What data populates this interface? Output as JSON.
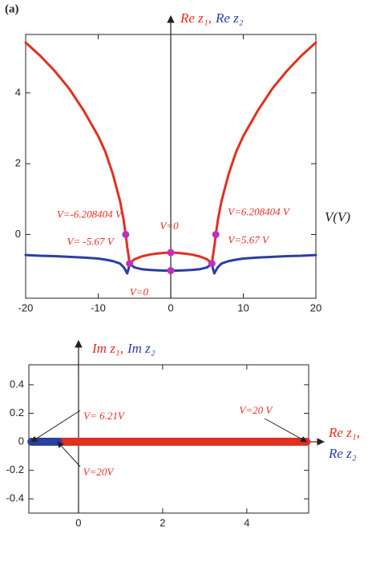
{
  "panel_label": "(a)",
  "chart_data": [
    {
      "type": "line",
      "ylabel": [
        "Re z₁,",
        "Re z₂"
      ],
      "xlabel": "V(V)",
      "x": [
        -20,
        -18,
        -16,
        -14,
        -12,
        -10,
        -9,
        -8,
        -7,
        -6.5,
        -6.208404,
        -6,
        -5.8,
        -5.67,
        -5,
        -4,
        -3,
        -2,
        -1,
        0,
        1,
        2,
        3,
        4,
        5,
        5.67,
        5.8,
        6,
        6.208404,
        6.5,
        7,
        8,
        9,
        10,
        12,
        14,
        16,
        18,
        20
      ],
      "series": [
        {
          "name": "Re z₁",
          "color": "#e03020",
          "values": [
            5.42,
            5.05,
            4.62,
            4.12,
            3.5,
            2.78,
            2.33,
            1.72,
            0.95,
            0.42,
            0,
            -0.35,
            -0.62,
            -0.82,
            -0.7,
            -0.62,
            -0.57,
            -0.54,
            -0.52,
            -0.51,
            -0.52,
            -0.54,
            -0.57,
            -0.62,
            -0.7,
            -0.82,
            -0.62,
            -0.35,
            0,
            0.42,
            0.95,
            1.72,
            2.33,
            2.78,
            3.5,
            4.12,
            4.62,
            5.05,
            5.42
          ]
        },
        {
          "name": "Re z₂",
          "color": "#2a3fa0",
          "values": [
            -0.58,
            -0.6,
            -0.61,
            -0.63,
            -0.65,
            -0.68,
            -0.71,
            -0.75,
            -0.82,
            -0.92,
            -1.02,
            -1.1,
            -0.95,
            -0.82,
            -0.93,
            -0.98,
            -1.0,
            -1.01,
            -1.02,
            -1.02,
            -1.02,
            -1.01,
            -1.0,
            -0.98,
            -0.93,
            -0.82,
            -0.95,
            -1.1,
            -1.02,
            -0.92,
            -0.82,
            -0.75,
            -0.71,
            -0.68,
            -0.65,
            -0.63,
            -0.61,
            -0.6,
            -0.58
          ]
        }
      ],
      "marker_color": "#c030c0",
      "annotations": [
        {
          "text": "V=-6.208404 V",
          "x": -6.208404,
          "y": 0
        },
        {
          "text": "V=6.208404 V",
          "x": 6.208404,
          "y": 0
        },
        {
          "text": "V= -5.67 V",
          "x": -5.67,
          "y": -0.82
        },
        {
          "text": "V=5.67 V",
          "x": 5.67,
          "y": -0.82
        },
        {
          "text": "V=0",
          "x": 0,
          "y": -0.51
        },
        {
          "text": "V=0",
          "x": 0,
          "y": -1.02
        }
      ],
      "xlim": [
        -20,
        20
      ],
      "ylim": [
        -1.8,
        5.65
      ],
      "xticks": [
        -20,
        -10,
        0,
        10,
        20
      ],
      "yticks": [
        0,
        2,
        4
      ]
    },
    {
      "type": "line",
      "ylabel": [
        "Im z₁,",
        "Im z₂"
      ],
      "xlabel": [
        "Re z₁,",
        "Re z₂"
      ],
      "series": [
        {
          "name": "z₁",
          "color": "#e03020",
          "x": [
            -0.45,
            5.42
          ],
          "values": [
            0,
            0
          ]
        },
        {
          "name": "z₂",
          "color": "#2a3fa0",
          "x": [
            -1.12,
            -0.48
          ],
          "values": [
            0,
            0
          ]
        }
      ],
      "annotations": [
        {
          "text": "V=  6.21V",
          "x": -1.12,
          "y": 0
        },
        {
          "text": "V=20V",
          "x": -0.5,
          "y": 0
        },
        {
          "text": "V=20 V",
          "x": 5.42,
          "y": 0
        }
      ],
      "xlim": [
        -1.18,
        5.47
      ],
      "ylim": [
        -0.5,
        0.54
      ],
      "xticks": [
        0,
        2,
        4
      ],
      "yticks": [
        -0.4,
        -0.2,
        0,
        0.2,
        0.4
      ]
    }
  ]
}
